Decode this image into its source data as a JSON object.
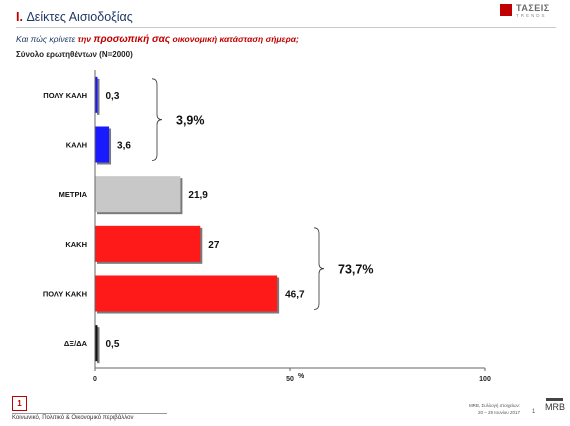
{
  "header": {
    "section_number": "I.",
    "section_title": "Δείκτες Αισιοδοξίας",
    "logo_name": "ΤΑΣΕΙΣ",
    "logo_subtitle": "TRENDS"
  },
  "question": {
    "prefix": "Και πώς κρίνετε",
    "the": "την",
    "emphasis": "προσωπική σας",
    "suffix": "οικονομική κατάσταση σήμερα;"
  },
  "base_text": "Σύνολο ερωτηθέντων (N=2000)",
  "chart_data": {
    "type": "bar",
    "orientation": "horizontal",
    "categories": [
      "ΠΟΛΥ ΚΑΛΗ",
      "ΚΑΛΗ",
      "ΜΕΤΡΙΑ",
      "ΚΑΚΗ",
      "ΠΟΛΥ ΚΑΚΗ",
      "ΔΞ/ΔΑ"
    ],
    "values": [
      0.3,
      3.6,
      21.9,
      27,
      46.7,
      0.5
    ],
    "value_labels": [
      "0,3",
      "3,6",
      "21,9",
      "27",
      "46,7",
      "0,5"
    ],
    "colors": [
      "#1a1aff",
      "#1a1aff",
      "#c8c8c8",
      "#ff1a1a",
      "#ff1a1a",
      "#111111"
    ],
    "xlim": [
      0,
      100
    ],
    "x_ticks": [
      "0",
      "50",
      "100"
    ],
    "x_unit": "%",
    "groups": [
      {
        "label": "3,9%",
        "from": 0,
        "to": 1
      },
      {
        "label": "73,7%",
        "from": 3,
        "to": 4
      }
    ]
  },
  "footer": {
    "page_box": "1",
    "text": "Κοινωνικό, Πολιτικό & Οικονομικό περιβάλλον",
    "survey_line1": "MRB, Συλλογή στοιχείων:",
    "survey_line2": "20 – 29 Ιουνίου 2017",
    "page_number": "1",
    "company": "MRB"
  }
}
